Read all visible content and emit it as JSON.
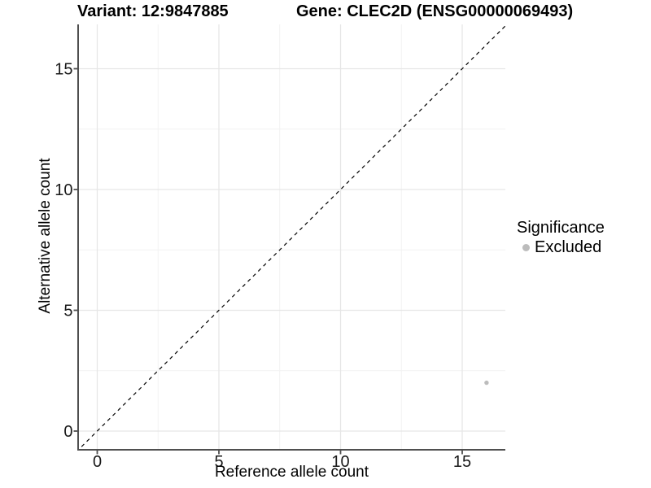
{
  "chart_data": {
    "type": "scatter",
    "titles": {
      "left": "Variant: 12:9847885",
      "right": "Gene: CLEC2D (ENSG00000069493)"
    },
    "xlabel": "Reference allele count",
    "ylabel": "Alternative allele count",
    "x_ticks": [
      0,
      5,
      10,
      15
    ],
    "y_ticks": [
      0,
      5,
      10,
      15
    ],
    "x_minor_gridlines": [
      2.5,
      7.5,
      12.5
    ],
    "y_minor_gridlines": [
      2.5,
      7.5,
      12.5
    ],
    "xlim": [
      -0.9,
      16.8
    ],
    "ylim": [
      -0.8,
      16.9
    ],
    "grid": "major and minor, light grey on white",
    "identity_line": {
      "equation": "y = x",
      "style": "dashed",
      "color": "#000000"
    },
    "series": [
      {
        "name": "Excluded",
        "color": "#bcbcbc",
        "points": [
          {
            "x": 16,
            "y": 2
          }
        ]
      }
    ],
    "legend": {
      "title": "Significance",
      "position": "right",
      "items": [
        {
          "label": "Excluded",
          "color": "#bcbcbc"
        }
      ]
    },
    "colors": {
      "background": "#ffffff",
      "grid_major": "#e6e6e6",
      "grid_minor": "#f2f2f2",
      "axis_line": "#4f4f4f",
      "tick_label": "#1a1a1a"
    }
  }
}
